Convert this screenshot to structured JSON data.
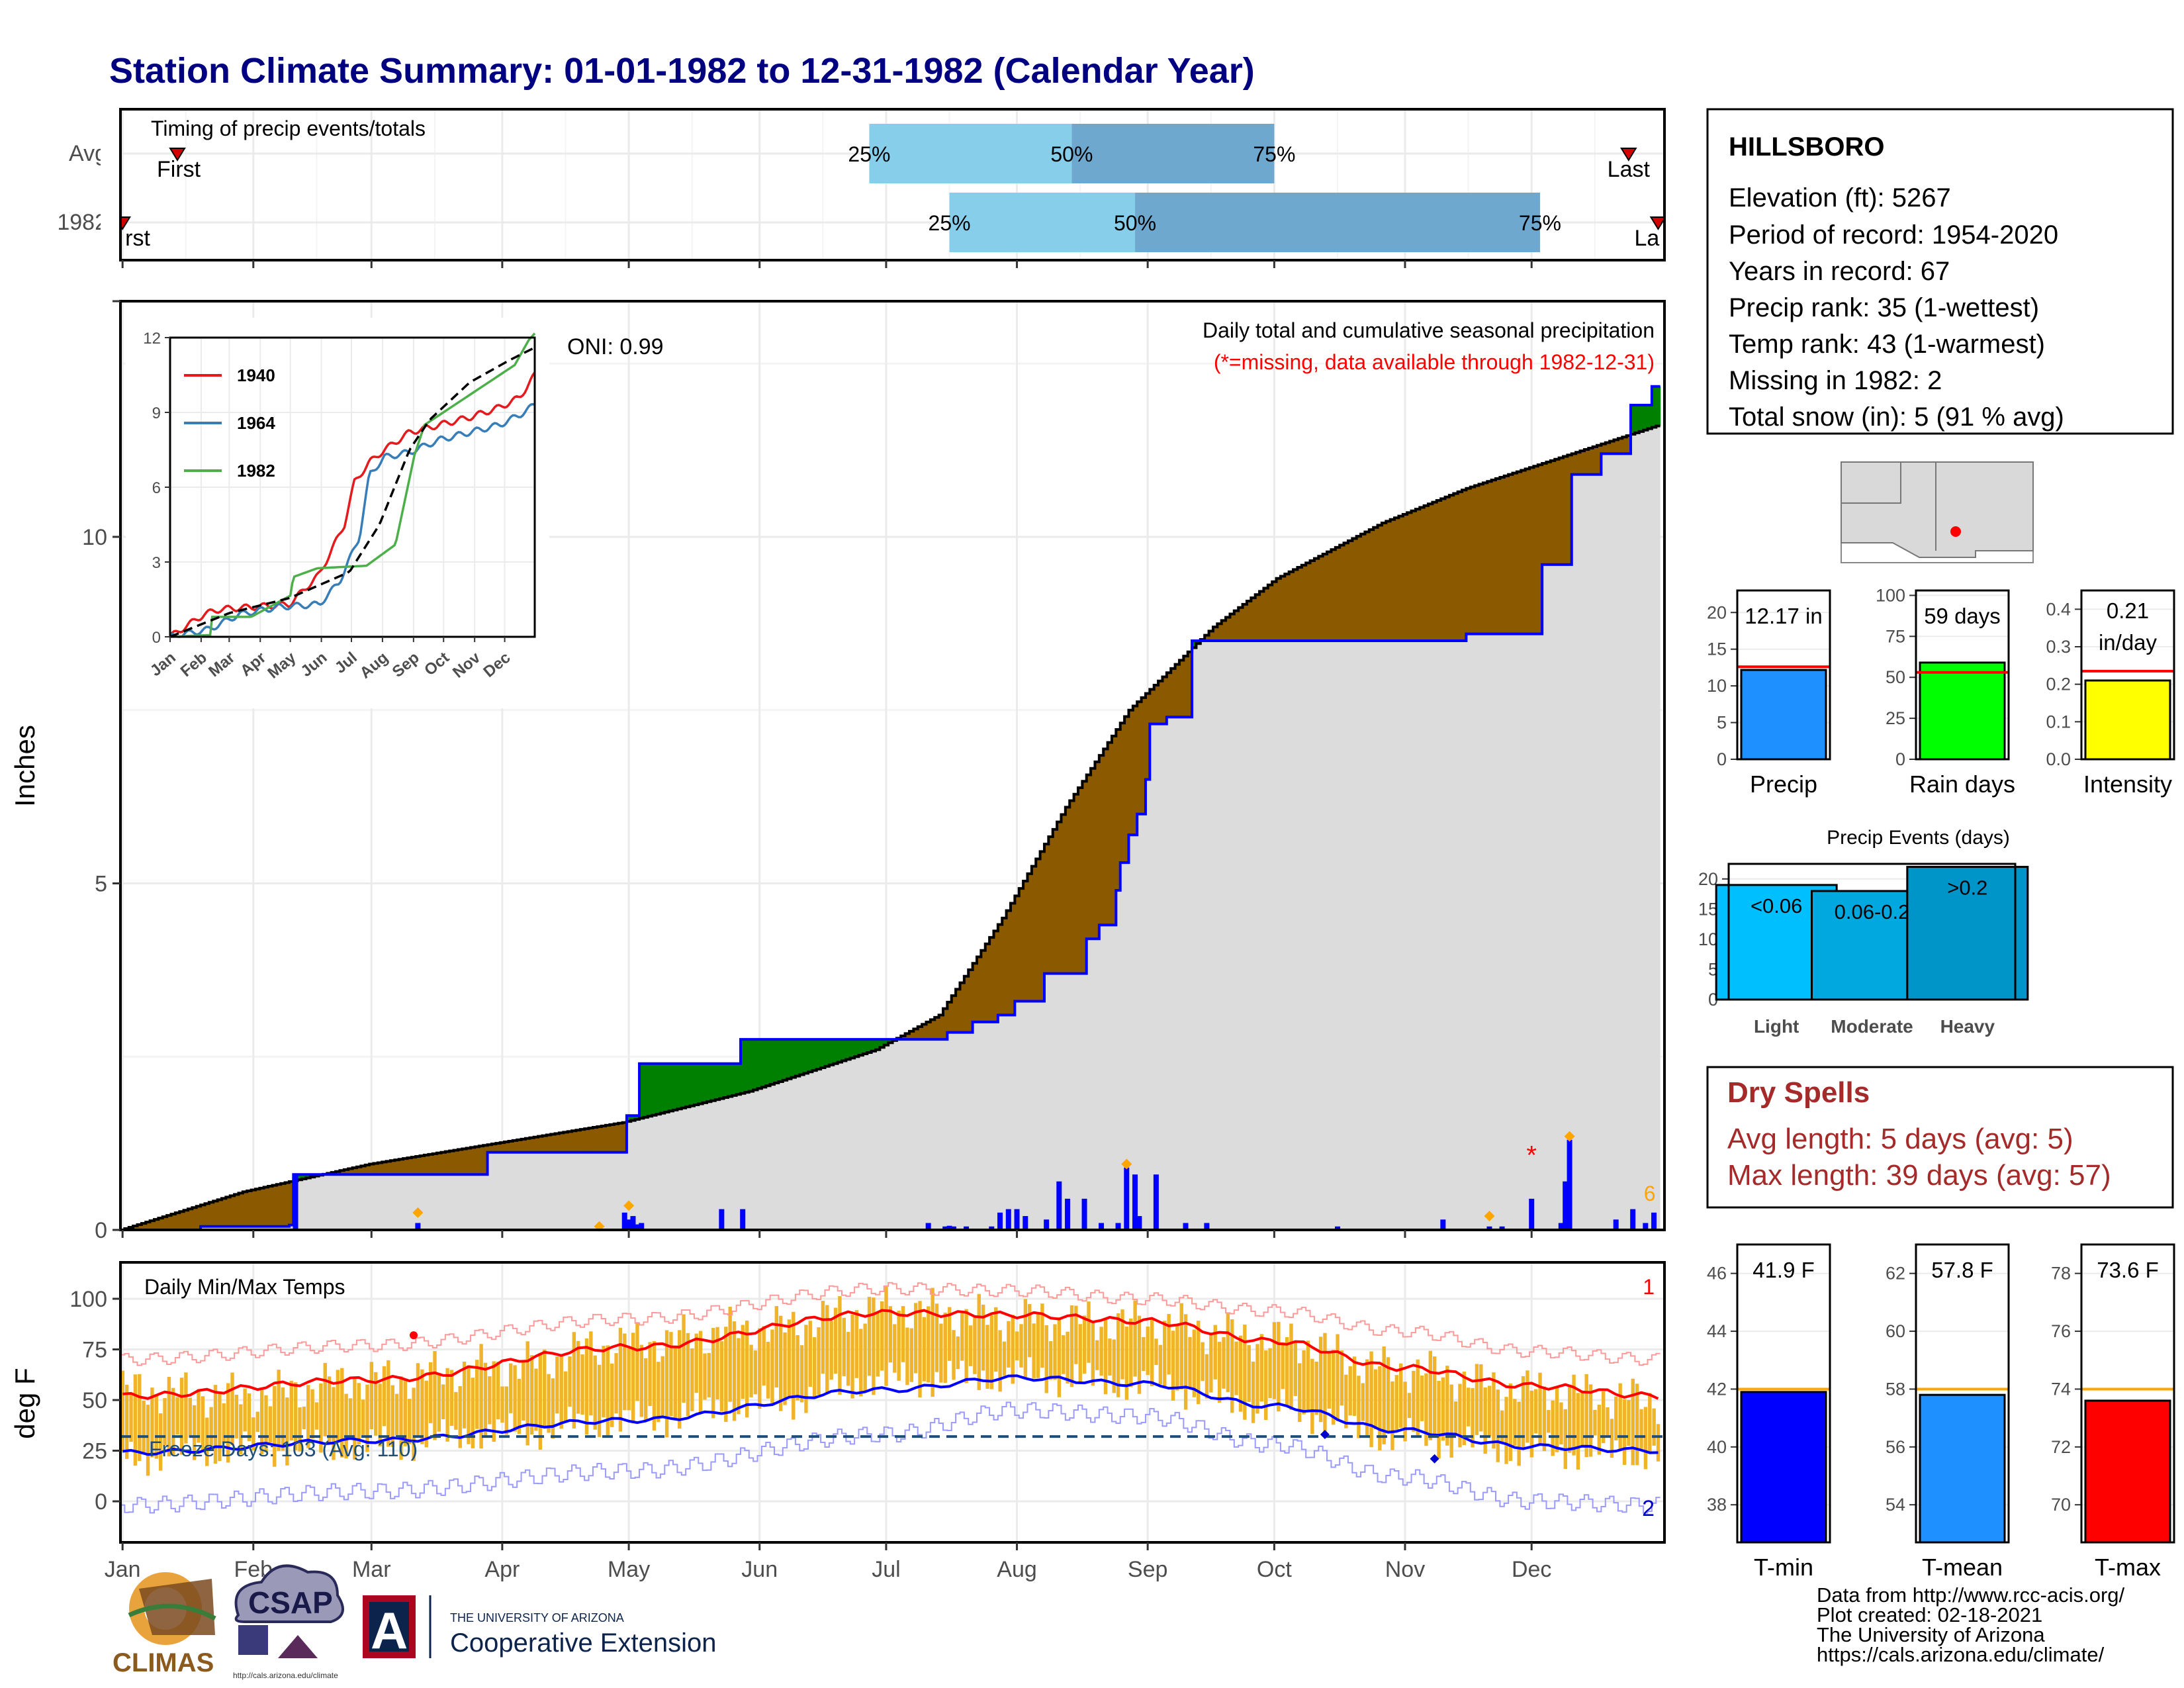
{
  "title": "Station Climate Summary: 01-01-1982 to 12-31-1982 (Calendar Year)",
  "colors": {
    "title": "#000080",
    "dry_spell": "#a52a2a",
    "light": "#00bfff",
    "moderate": "#00a8e0",
    "heavy": "#0095c8",
    "precip_bar": "#1e90ff",
    "rain_days_bar": "#00ff00",
    "intensity_bar": "#ffff00",
    "tmin_bar": "#0000ff",
    "tmean_bar": "#1e90ff",
    "tmax_bar": "#ff0000",
    "wetter": "#008000",
    "drier": "#8b5a00",
    "normal": "#dcdcdc",
    "temp_band": "#f0b429"
  },
  "timing": {
    "panel_title": "Timing of precip events/totals",
    "rows": [
      "Avg",
      "1982"
    ],
    "first_label": "First",
    "last_label": "Last",
    "first_label_clipped": "rst",
    "last_label_clipped": "La",
    "pct_labels": [
      "25%",
      "50%",
      "75%"
    ]
  },
  "main": {
    "ylabel": "Inches",
    "yticks": [
      "0",
      "5",
      "10"
    ],
    "months": [
      "Jan",
      "Feb",
      "Mar",
      "Apr",
      "May",
      "Jun",
      "Jul",
      "Aug",
      "Sep",
      "Oct",
      "Nov",
      "Dec"
    ],
    "subtitle": "Daily total and cumulative seasonal precipitation",
    "missing_note": "(*=missing, data available through 1982-12-31)",
    "oni": "ONI: 0.99",
    "count_label": "6"
  },
  "inset": {
    "yticks": [
      "0",
      "3",
      "6",
      "9",
      "12"
    ],
    "months": [
      "Jan",
      "Feb",
      "Mar",
      "Apr",
      "May",
      "Jun",
      "Jul",
      "Aug",
      "Sep",
      "Oct",
      "Nov",
      "Dec"
    ],
    "legend": [
      "1940",
      "1964",
      "1982"
    ]
  },
  "temps": {
    "panel_title": "Daily Min/Max Temps",
    "ylabel": "deg F",
    "yticks": [
      "0",
      "25",
      "50",
      "75",
      "100"
    ],
    "freeze": "Freeze Days: 103 (Avg: 110)",
    "count_top": "1",
    "count_bottom": "2"
  },
  "station": {
    "name": "HILLSBORO",
    "lines": [
      "Elevation (ft): 5267",
      "Period of record: 1954-2020",
      "Years in record: 67",
      "Precip rank: 35 (1-wettest)",
      "Temp rank: 43 (1-warmest)",
      "Missing in 1982: 2",
      "Total snow (in): 5 (91 % avg)"
    ]
  },
  "dry_spells": {
    "title": "Dry Spells",
    "avg": "Avg length: 5 days (avg: 5)",
    "max": "Max length: 39 days (avg: 57)"
  },
  "precip_events": {
    "title": "Precip Events (days)",
    "yticks": [
      "0",
      "5",
      "10",
      "15",
      "20"
    ],
    "categories": [
      "Light",
      "Moderate",
      "Heavy"
    ],
    "labels": [
      "<0.06",
      "0.06-0.2",
      ">0.2"
    ]
  },
  "mini": {
    "precip": {
      "label": "Precip",
      "value_label": "12.17 in",
      "yticks": [
        "0",
        "5",
        "10",
        "15",
        "20"
      ]
    },
    "rain_days": {
      "label": "Rain days",
      "value_label": "59 days",
      "yticks": [
        "0",
        "25",
        "50",
        "75",
        "100"
      ]
    },
    "intensity": {
      "label": "Intensity",
      "value_label_1": "0.21",
      "value_label_2": "in/day",
      "yticks": [
        "0.0",
        "0.1",
        "0.2",
        "0.3",
        "0.4"
      ]
    },
    "tmin": {
      "label": "T-min",
      "value_label": "41.9 F",
      "yticks": [
        "38",
        "40",
        "42",
        "44",
        "46"
      ]
    },
    "tmean": {
      "label": "T-mean",
      "value_label": "57.8 F",
      "yticks": [
        "54",
        "56",
        "58",
        "60",
        "62"
      ]
    },
    "tmax": {
      "label": "T-max",
      "value_label": "73.6 F",
      "yticks": [
        "70",
        "72",
        "74",
        "76",
        "78"
      ]
    }
  },
  "footer": {
    "lines": [
      "Data from http://www.rcc-acis.org/",
      "Plot created: 02-18-2021",
      "The University of Arizona",
      "https://cals.arizona.edu/climate/"
    ]
  },
  "logos": {
    "climas": "CLIMAS",
    "csap": "CSAP",
    "csap_url": "http://cals.arizona.edu/climate",
    "ua_line1": "THE UNIVERSITY OF ARIZONA",
    "ua_line2": "Cooperative Extension",
    "ua_letter": "A"
  },
  "chart_data": [
    {
      "type": "bar",
      "title": "Timing of precip events/totals",
      "categories": [
        "Avg",
        "1982"
      ],
      "x_unit": "day of year",
      "series": [
        {
          "name": "Avg",
          "first": 14,
          "last": 358,
          "p25": 178,
          "p50": 226,
          "p75": 274
        },
        {
          "name": "1982",
          "first": 1,
          "last": 365,
          "p25": 197,
          "p50": 241,
          "p75": 337
        }
      ]
    },
    {
      "type": "area",
      "title": "Daily total and cumulative seasonal precipitation",
      "ylabel": "Inches",
      "ylim": [
        0,
        13.4
      ],
      "x_unit": "day of year",
      "series": [
        {
          "name": "1982 cumulative",
          "x": [
            1,
            20,
            41,
            42,
            82,
            88,
            96,
            105,
            118,
            121,
            124,
            133,
            148,
            182,
            197,
            203,
            209,
            213,
            220,
            226,
            230,
            233,
            237,
            238,
            240,
            242,
            244,
            245,
            249,
            252,
            255,
            258,
            265,
            290,
            320,
            338,
            344,
            345,
            352,
            359,
            364,
            365
          ],
          "values": [
            0,
            0.05,
            0.07,
            0.8,
            0.8,
            1.12,
            1.12,
            1.12,
            1.12,
            1.65,
            2.4,
            2.4,
            2.75,
            2.75,
            2.85,
            3,
            3.1,
            3.3,
            3.7,
            3.7,
            4.2,
            4.4,
            4.9,
            5.3,
            5.7,
            6,
            6.5,
            7.3,
            7.4,
            7.4,
            8.5,
            8.5,
            8.5,
            8.5,
            8.6,
            9.6,
            9.6,
            10.9,
            11.2,
            11.9,
            12.17,
            12.17
          ]
        },
        {
          "name": "Average cumulative",
          "x": [
            1,
            30,
            60,
            90,
            120,
            150,
            180,
            195,
            210,
            225,
            240,
            250,
            260,
            275,
            300,
            320,
            340,
            355,
            365
          ],
          "values": [
            0,
            0.55,
            0.95,
            1.25,
            1.55,
            2,
            2.6,
            3.1,
            4.5,
            6.1,
            7.5,
            8.1,
            8.7,
            9.4,
            10.2,
            10.7,
            11.1,
            11.4,
            11.6
          ]
        },
        {
          "name": "Daily precip",
          "x": [
            42,
            71,
            120,
            121,
            122,
            123,
            124,
            143,
            148,
            192,
            196,
            197,
            198,
            201,
            207,
            209,
            211,
            213,
            215,
            220,
            223,
            225,
            229,
            233,
            237,
            239,
            241,
            242,
            246,
            253,
            258,
            289,
            314,
            325,
            328,
            335,
            342,
            343,
            344,
            355,
            359,
            362,
            364
          ],
          "values": [
            0.8,
            0.1,
            0.25,
            0.15,
            0.2,
            0.08,
            0.1,
            0.3,
            0.3,
            0.1,
            0.05,
            0.06,
            0.05,
            0.05,
            0.05,
            0.25,
            0.3,
            0.3,
            0.2,
            0.15,
            0.7,
            0.45,
            0.45,
            0.1,
            0.1,
            0.9,
            0.8,
            0.2,
            0.8,
            0.1,
            0.1,
            0.05,
            0.15,
            0.05,
            0.05,
            0.45,
            0.1,
            0.7,
            1.3,
            0.15,
            0.3,
            0.1,
            0.25
          ]
        }
      ]
    },
    {
      "type": "line",
      "title": "",
      "ylim": [
        0,
        12
      ],
      "categories": [
        "Jan",
        "Feb",
        "Mar",
        "Apr",
        "May",
        "Jun",
        "Jul",
        "Aug",
        "Sep",
        "Oct",
        "Nov",
        "Dec"
      ],
      "x_unit": "day of year",
      "series": [
        {
          "name": "1940",
          "x": [
            1,
            35,
            50,
            120,
            150,
            175,
            185,
            200,
            215,
            240,
            270,
            300,
            330,
            350,
            365
          ],
          "values": [
            0,
            0.9,
            1.1,
            1.3,
            2.5,
            4.5,
            6.2,
            7,
            7.5,
            8.2,
            8.5,
            8.8,
            9.2,
            9.6,
            10.5
          ]
        },
        {
          "name": "1964",
          "x": [
            1,
            40,
            70,
            110,
            150,
            170,
            190,
            200,
            215,
            240,
            270,
            300,
            330,
            350,
            365
          ],
          "values": [
            0,
            0.3,
            0.9,
            1.2,
            1.3,
            2.2,
            4,
            6.5,
            7.2,
            7.4,
            7.9,
            8.2,
            8.5,
            8.9,
            9.3
          ]
        },
        {
          "name": "1982",
          "x": [
            1,
            41,
            42,
            82,
            121,
            124,
            148,
            197,
            226,
            245,
            255,
            345,
            359,
            365
          ],
          "values": [
            0,
            0.07,
            0.8,
            0.8,
            1.65,
            2.4,
            2.75,
            2.85,
            3.7,
            7.3,
            8.5,
            10.9,
            11.9,
            12.17
          ]
        },
        {
          "name": "Average",
          "x": [
            1,
            60,
            120,
            180,
            210,
            240,
            260,
            300,
            340,
            365
          ],
          "values": [
            0,
            0.95,
            1.55,
            2.6,
            4.5,
            7.5,
            8.7,
            10.2,
            11.1,
            11.6
          ]
        }
      ]
    },
    {
      "type": "area",
      "title": "Daily Min/Max Temps",
      "ylabel": "deg F",
      "ylim": [
        -15,
        108
      ],
      "x_unit": "day of year",
      "series": [
        {
          "name": "Avg max",
          "x": [
            1,
            60,
            121,
            182,
            213,
            243,
            274,
            304,
            335,
            365
          ],
          "values": [
            52,
            60,
            76,
            93,
            92,
            89,
            79,
            66,
            57,
            52
          ]
        },
        {
          "name": "Avg min",
          "x": [
            1,
            60,
            121,
            182,
            213,
            243,
            274,
            304,
            335,
            365
          ],
          "values": [
            24,
            30,
            40,
            55,
            61,
            58,
            47,
            35,
            27,
            25
          ]
        },
        {
          "name": "Record high",
          "x": [
            1,
            60,
            121,
            182,
            213,
            243,
            274,
            304,
            335,
            365
          ],
          "values": [
            70,
            77,
            90,
            105,
            104,
            100,
            94,
            84,
            74,
            70
          ]
        },
        {
          "name": "Record low",
          "x": [
            1,
            60,
            121,
            182,
            213,
            243,
            274,
            304,
            335,
            365
          ],
          "values": [
            -2,
            5,
            15,
            33,
            45,
            42,
            28,
            12,
            0,
            -2
          ]
        },
        {
          "name": "Daily max 1982 (smoothed)",
          "x": [
            1,
            30,
            60,
            90,
            121,
            152,
            182,
            213,
            243,
            274,
            304,
            335,
            365
          ],
          "values": [
            55,
            52,
            60,
            66,
            78,
            85,
            95,
            90,
            88,
            80,
            65,
            55,
            50
          ]
        },
        {
          "name": "Daily min 1982 (smoothed)",
          "x": [
            1,
            30,
            60,
            90,
            121,
            152,
            182,
            213,
            243,
            274,
            304,
            335,
            365
          ],
          "values": [
            22,
            26,
            28,
            34,
            40,
            48,
            60,
            62,
            58,
            46,
            32,
            25,
            24
          ]
        }
      ]
    },
    {
      "type": "bar",
      "title": "Precip Events (days)",
      "categories": [
        "Light",
        "Moderate",
        "Heavy"
      ],
      "values": [
        19,
        18,
        22
      ],
      "ylim": [
        0,
        22.5
      ]
    },
    {
      "type": "bar",
      "categories": [
        "Precip",
        "Rain days",
        "Intensity",
        "T-min",
        "T-mean",
        "T-max"
      ],
      "values": [
        12.17,
        59,
        0.21,
        41.9,
        57.8,
        73.6
      ],
      "reference": [
        12.6,
        53,
        0.235,
        42.0,
        58.0,
        74.0
      ],
      "ylims": [
        [
          0,
          23
        ],
        [
          0,
          103
        ],
        [
          0,
          0.45
        ],
        [
          36.7,
          47
        ],
        [
          52.7,
          63
        ],
        [
          68.7,
          79
        ]
      ]
    }
  ]
}
